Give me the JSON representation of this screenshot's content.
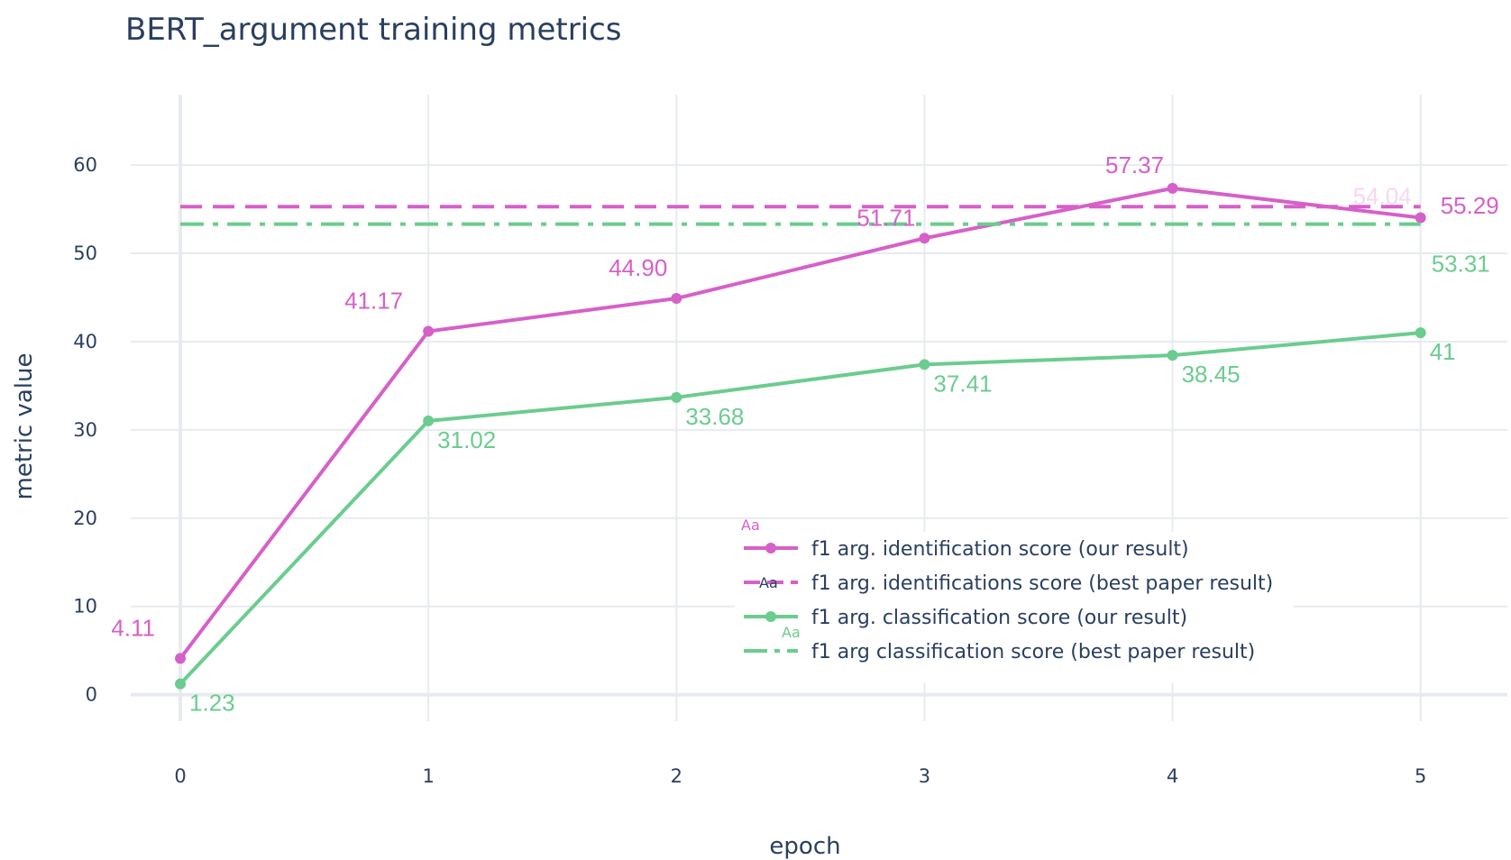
{
  "chart_data": {
    "type": "line",
    "title": "BERT_argument training metrics",
    "xlabel": "epoch",
    "ylabel": "metric value",
    "x": [
      0,
      1,
      2,
      3,
      4,
      5
    ],
    "x_ticks": [
      "0",
      "1",
      "2",
      "3",
      "4",
      "5"
    ],
    "y_ticks": [
      "0",
      "10",
      "20",
      "30",
      "40",
      "50",
      "60"
    ],
    "xlim": [
      -0.2,
      5.35
    ],
    "ylim": [
      -3,
      69
    ],
    "grid": true,
    "legend_position": "bottom-right inside plot",
    "legend_marker_text": "Aa",
    "series": [
      {
        "name": "f1 arg. identification score (our result)",
        "style": "lines+markers",
        "color": "#d660c8",
        "values": [
          4.11,
          41.17,
          44.9,
          51.71,
          57.37,
          54.04
        ],
        "labels": [
          "4.11",
          "41.17",
          "44.90",
          "51.71",
          "57.37",
          "54.04"
        ]
      },
      {
        "name": "f1 arg. identifications score (best paper result)",
        "style": "dash",
        "color": "#d660c8",
        "values": [
          55.29,
          55.29,
          55.29,
          55.29,
          55.29,
          55.29
        ],
        "labels": [
          "55.29"
        ]
      },
      {
        "name": "f1 arg. classification score (our result)",
        "style": "lines+markers",
        "color": "#6bcc8f",
        "values": [
          1.23,
          31.02,
          33.68,
          37.41,
          38.45,
          41
        ],
        "labels": [
          "1.23",
          "31.02",
          "33.68",
          "37.41",
          "38.45",
          "41"
        ]
      },
      {
        "name": "f1 arg classification score (best paper result)",
        "style": "dashdot",
        "color": "#6bcc8f",
        "values": [
          53.31,
          53.31,
          53.31,
          53.31,
          53.31,
          53.31
        ],
        "labels": [
          "53.31"
        ]
      }
    ]
  }
}
